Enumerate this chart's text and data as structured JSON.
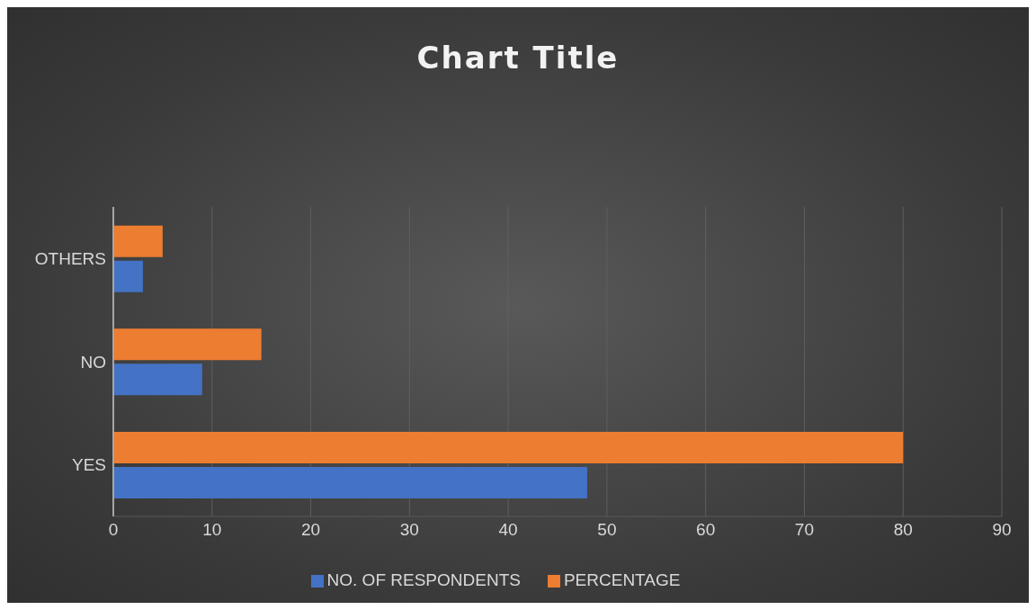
{
  "chart_data": {
    "type": "bar",
    "title": "Chart Title",
    "orientation": "horizontal",
    "categories": [
      "OTHERS",
      "NO",
      "YES"
    ],
    "series": [
      {
        "name": "PERCENTAGE",
        "color": "#ed7d31",
        "values": [
          5,
          15,
          80
        ]
      },
      {
        "name": "NO. OF RESPONDENTS",
        "color": "#4472c4",
        "values": [
          3,
          9,
          48
        ]
      }
    ],
    "xlim": [
      0,
      90
    ],
    "xticks": [
      0,
      10,
      20,
      30,
      40,
      50,
      60,
      70,
      80,
      90
    ],
    "grid": "x",
    "legend": "bottom"
  }
}
